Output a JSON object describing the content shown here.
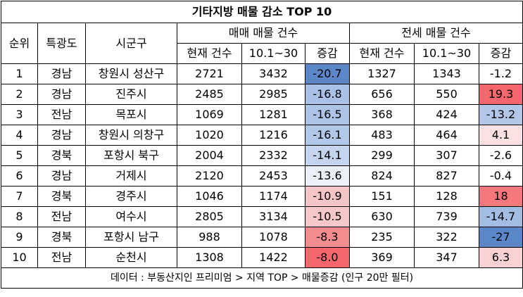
{
  "title": "기타지방 매물 감소 TOP 10",
  "headers": {
    "rank": "순위",
    "province": "특광도",
    "city": "시군구",
    "sale_group": "매매 매물 건수",
    "jeonse_group": "전세 매물 건수",
    "current": "현재 건수",
    "period": "10.1~30",
    "change": "증감"
  },
  "rows": [
    {
      "rank": "1",
      "province": "경남",
      "city": "창원시 성산구",
      "sale_now": "2721",
      "sale_prev": "3432",
      "sale_change": "-20.7",
      "jeonse_now": "1327",
      "jeonse_prev": "1343",
      "jeonse_change": "-1.2"
    },
    {
      "rank": "2",
      "province": "경남",
      "city": "진주시",
      "sale_now": "2485",
      "sale_prev": "2985",
      "sale_change": "-16.8",
      "jeonse_now": "656",
      "jeonse_prev": "550",
      "jeonse_change": "19.3"
    },
    {
      "rank": "3",
      "province": "전남",
      "city": "목포시",
      "sale_now": "1069",
      "sale_prev": "1281",
      "sale_change": "-16.5",
      "jeonse_now": "368",
      "jeonse_prev": "424",
      "jeonse_change": "-13.2"
    },
    {
      "rank": "4",
      "province": "경남",
      "city": "창원시 의창구",
      "sale_now": "1020",
      "sale_prev": "1216",
      "sale_change": "-16.1",
      "jeonse_now": "483",
      "jeonse_prev": "464",
      "jeonse_change": "4.1"
    },
    {
      "rank": "5",
      "province": "경북",
      "city": "포항시 북구",
      "sale_now": "2004",
      "sale_prev": "2332",
      "sale_change": "-14.1",
      "jeonse_now": "299",
      "jeonse_prev": "307",
      "jeonse_change": "-2.6"
    },
    {
      "rank": "6",
      "province": "경남",
      "city": "거제시",
      "sale_now": "2120",
      "sale_prev": "2453",
      "sale_change": "-13.6",
      "jeonse_now": "824",
      "jeonse_prev": "827",
      "jeonse_change": "-0.4"
    },
    {
      "rank": "7",
      "province": "경북",
      "city": "경주시",
      "sale_now": "1046",
      "sale_prev": "1174",
      "sale_change": "-10.9",
      "jeonse_now": "151",
      "jeonse_prev": "128",
      "jeonse_change": "18"
    },
    {
      "rank": "8",
      "province": "전남",
      "city": "여수시",
      "sale_now": "2805",
      "sale_prev": "3134",
      "sale_change": "-10.5",
      "jeonse_now": "630",
      "jeonse_prev": "739",
      "jeonse_change": "-14.7"
    },
    {
      "rank": "9",
      "province": "경북",
      "city": "포항시 남구",
      "sale_now": "988",
      "sale_prev": "1078",
      "sale_change": "-8.3",
      "jeonse_now": "235",
      "jeonse_prev": "322",
      "jeonse_change": "-27"
    },
    {
      "rank": "10",
      "province": "전남",
      "city": "순천시",
      "sale_now": "1308",
      "sale_prev": "1422",
      "sale_change": "-8.0",
      "jeonse_now": "369",
      "jeonse_prev": "347",
      "jeonse_change": "6.3"
    }
  ],
  "cell_colors": {
    "sale_change": [
      "#5b87c9",
      "#a9c1e6",
      "#adc4e6",
      "#b2c8e9",
      "#c5d5ef",
      "#eceff8",
      "#f6c5c6",
      "#f6c8c9",
      "#f48b8e",
      "#f5676c"
    ],
    "jeonse_change": [
      "#ffffff",
      "#f5676c",
      "#b2c7e8",
      "#fbe1e2",
      "#ffffff",
      "#ffffff",
      "#f5787c",
      "#a3bce3",
      "#5b87c9",
      "#f8d2d3"
    ]
  },
  "footer": "데이터 : 부동산지인 프리미엄 > 지역 TOP > 매물증감 (인구 20만 필터)"
}
